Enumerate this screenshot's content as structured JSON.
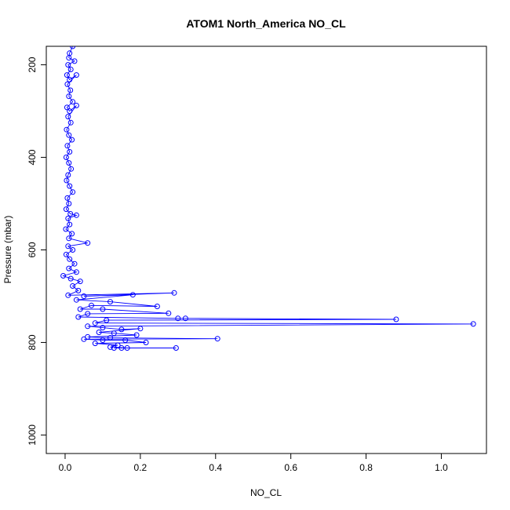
{
  "chart_data": {
    "type": "line",
    "title": "ATOM1 North_America NO_CL",
    "xlabel": "NO_CL",
    "ylabel": "Pressure (mbar)",
    "xlim": [
      -0.05,
      1.12
    ],
    "ylim": [
      1040,
      160
    ],
    "y_reversed": true,
    "xticks": [
      0.0,
      0.2,
      0.4,
      0.6,
      0.8,
      1.0
    ],
    "xtick_labels": [
      "0.0",
      "0.2",
      "0.4",
      "0.6",
      "0.8",
      "1.0"
    ],
    "yticks": [
      200,
      400,
      600,
      800,
      1000
    ],
    "ytick_labels": [
      "200",
      "400",
      "600",
      "800",
      "1000"
    ],
    "grid": false,
    "legend": "none",
    "series_color": "#0000ff",
    "marker": "open-circle",
    "points": [
      [
        0.02,
        160
      ],
      [
        0.012,
        175
      ],
      [
        0.01,
        185
      ],
      [
        0.025,
        192
      ],
      [
        0.008,
        200
      ],
      [
        0.015,
        210
      ],
      [
        0.005,
        222
      ],
      [
        0.012,
        232
      ],
      [
        0.03,
        222
      ],
      [
        0.006,
        242
      ],
      [
        0.014,
        255
      ],
      [
        0.01,
        268
      ],
      [
        0.02,
        280
      ],
      [
        0.005,
        292
      ],
      [
        0.012,
        300
      ],
      [
        0.03,
        288
      ],
      [
        0.008,
        312
      ],
      [
        0.015,
        325
      ],
      [
        0.004,
        340
      ],
      [
        0.01,
        352
      ],
      [
        0.018,
        362
      ],
      [
        0.006,
        375
      ],
      [
        0.012,
        388
      ],
      [
        0.003,
        400
      ],
      [
        0.01,
        412
      ],
      [
        0.016,
        425
      ],
      [
        0.008,
        438
      ],
      [
        0.004,
        450
      ],
      [
        0.012,
        462
      ],
      [
        0.02,
        475
      ],
      [
        0.006,
        488
      ],
      [
        0.01,
        500
      ],
      [
        0.003,
        512
      ],
      [
        0.014,
        522
      ],
      [
        0.03,
        525
      ],
      [
        0.008,
        532
      ],
      [
        0.012,
        545
      ],
      [
        0.002,
        555
      ],
      [
        0.018,
        565
      ],
      [
        0.01,
        575
      ],
      [
        0.06,
        585
      ],
      [
        0.008,
        592
      ],
      [
        0.02,
        600
      ],
      [
        0.003,
        610
      ],
      [
        0.012,
        620
      ],
      [
        0.025,
        630
      ],
      [
        0.01,
        640
      ],
      [
        0.03,
        648
      ],
      [
        -0.005,
        656
      ],
      [
        0.015,
        662
      ],
      [
        0.04,
        668
      ],
      [
        0.02,
        678
      ],
      [
        0.035,
        688
      ],
      [
        0.008,
        698
      ],
      [
        0.29,
        693
      ],
      [
        0.05,
        700
      ],
      [
        0.18,
        697
      ],
      [
        0.03,
        708
      ],
      [
        0.12,
        712
      ],
      [
        0.245,
        722
      ],
      [
        0.07,
        720
      ],
      [
        0.04,
        728
      ],
      [
        0.1,
        728
      ],
      [
        0.275,
        737
      ],
      [
        0.06,
        738
      ],
      [
        0.035,
        745
      ],
      [
        0.3,
        748
      ],
      [
        0.32,
        748
      ],
      [
        0.88,
        750
      ],
      [
        0.11,
        752
      ],
      [
        0.08,
        758
      ],
      [
        1.085,
        760
      ],
      [
        0.06,
        765
      ],
      [
        0.1,
        768
      ],
      [
        0.15,
        772
      ],
      [
        0.2,
        770
      ],
      [
        0.09,
        778
      ],
      [
        0.13,
        780
      ],
      [
        0.19,
        784
      ],
      [
        0.06,
        788
      ],
      [
        0.12,
        790
      ],
      [
        0.405,
        792
      ],
      [
        0.05,
        793
      ],
      [
        0.1,
        795
      ],
      [
        0.16,
        795
      ],
      [
        0.215,
        800
      ],
      [
        0.08,
        802
      ],
      [
        0.14,
        806
      ],
      [
        0.12,
        810
      ],
      [
        0.165,
        812
      ],
      [
        0.295,
        812
      ],
      [
        0.13,
        812
      ],
      [
        0.15,
        812
      ]
    ]
  }
}
